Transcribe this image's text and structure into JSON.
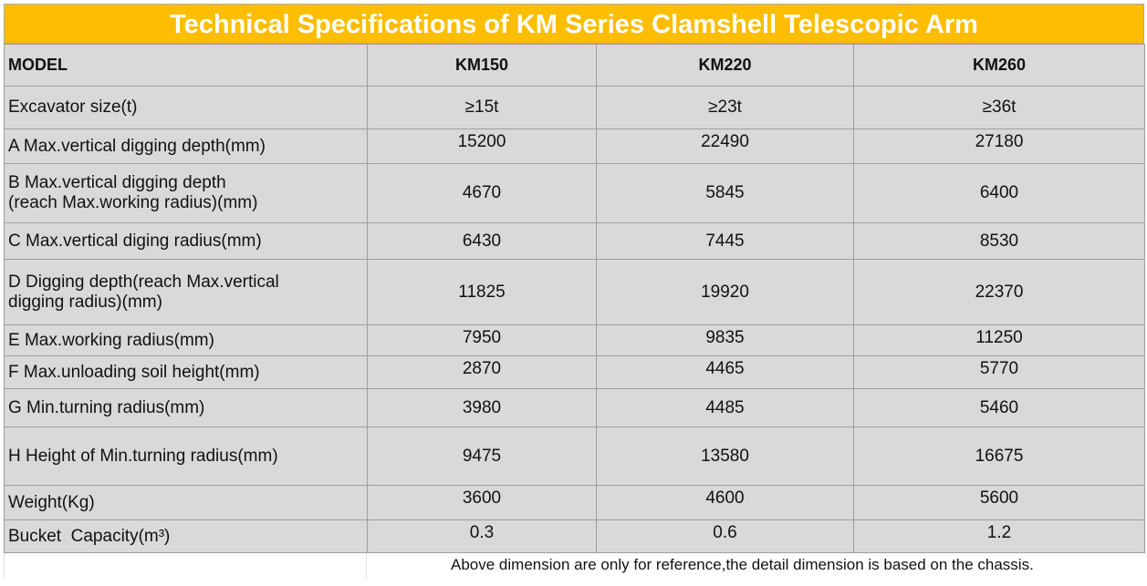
{
  "title": "Technical Specifications of KM Series Clamshell Telescopic Arm",
  "header": {
    "model_label": "MODEL",
    "models": [
      "KM150",
      "KM220",
      "KM260"
    ]
  },
  "rows": [
    {
      "label": "Excavator size(t)",
      "values": [
        "≥15t",
        "≥23t",
        "≥36t"
      ]
    },
    {
      "label": "A Max.vertical digging depth(mm)",
      "values": [
        "15200",
        "22490",
        "27180"
      ]
    },
    {
      "label_line1": "B Max.vertical digging depth",
      "label_line2": "(reach Max.working radius)(mm)",
      "values": [
        "4670",
        "5845",
        "6400"
      ]
    },
    {
      "label": "C Max.vertical diging radius(mm)",
      "values": [
        "6430",
        "7445",
        "8530"
      ]
    },
    {
      "label_line1": "D Digging depth(reach Max.vertical",
      "label_line2": "digging radius)(mm)",
      "values": [
        "11825",
        "19920",
        "22370"
      ]
    },
    {
      "label": "E Max.working radius(mm)",
      "values": [
        "7950",
        "9835",
        "11250"
      ]
    },
    {
      "label": "F Max.unloading soil height(mm)",
      "values": [
        "2870",
        "4465",
        "5770"
      ]
    },
    {
      "label": "G Min.turning radius(mm)",
      "values": [
        "3980",
        "4485",
        "5460"
      ]
    },
    {
      "label": "H Height of Min.turning radius(mm)",
      "values": [
        "9475",
        "13580",
        "16675"
      ]
    },
    {
      "label": "Weight(Kg)",
      "values": [
        "3600",
        "4600",
        "5600"
      ]
    },
    {
      "label": "Bucket  Capacity(m³)",
      "values": [
        "0.3",
        "0.6",
        "1.2"
      ]
    }
  ],
  "footnote": "Above dimension are only for reference,the detail dimension is based on the chassis.",
  "colors": {
    "title_bg": "#fdbd01",
    "cell_bg": "#d9d9d9",
    "border": "#9e9e9e"
  }
}
